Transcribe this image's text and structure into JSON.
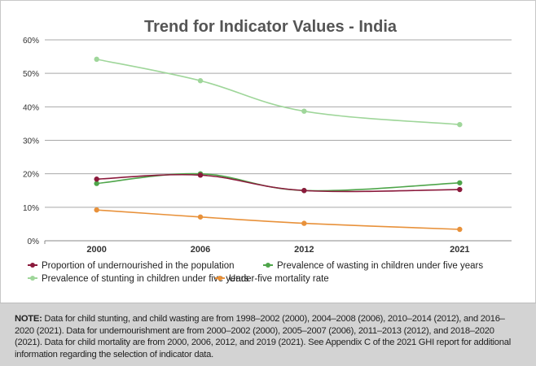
{
  "chart_data": {
    "type": "line",
    "title": "Trend for Indicator Values - India",
    "xlabel": "",
    "ylabel": "",
    "x": [
      2000,
      2006,
      2012,
      2021
    ],
    "x_tick_labels": [
      "2000",
      "2006",
      "2012",
      "2021"
    ],
    "y_tick_labels": [
      "0%",
      "10%",
      "20%",
      "30%",
      "40%",
      "50%",
      "60%"
    ],
    "ylim": [
      0,
      60
    ],
    "xlim": [
      1997,
      2024
    ],
    "grid": "horizontal",
    "legend_position": "bottom",
    "series": [
      {
        "name": "Proportion of undernourished in the population",
        "color": "#8b1a3c",
        "values": [
          18.4,
          19.6,
          15.0,
          15.3
        ]
      },
      {
        "name": "Prevalence of wasting in children under five years",
        "color": "#4ea54a",
        "values": [
          17.1,
          20.0,
          15.0,
          17.3
        ]
      },
      {
        "name": "Prevalence of stunting in children under five years",
        "color": "#9fd69a",
        "values": [
          54.2,
          47.8,
          38.7,
          34.7
        ]
      },
      {
        "name": "Under-five mortality rate",
        "color": "#e8913a",
        "values": [
          9.2,
          7.1,
          5.2,
          3.4
        ]
      }
    ]
  },
  "note": {
    "label": "NOTE:",
    "text": "Data for child stunting, and child wasting are from 1998–2002 (2000), 2004–2008 (2006), 2010–2014 (2012), and 2016–2020 (2021). Data for undernourishment are from 2000–2002 (2000), 2005–2007 (2006), 2011–2013 (2012), and 2018–2020 (2021). Data for child mortality are from 2000, 2006, 2012, and 2019 (2021). See Appendix C of the 2021 GHI report for additional information regarding the selection of indicator data."
  }
}
